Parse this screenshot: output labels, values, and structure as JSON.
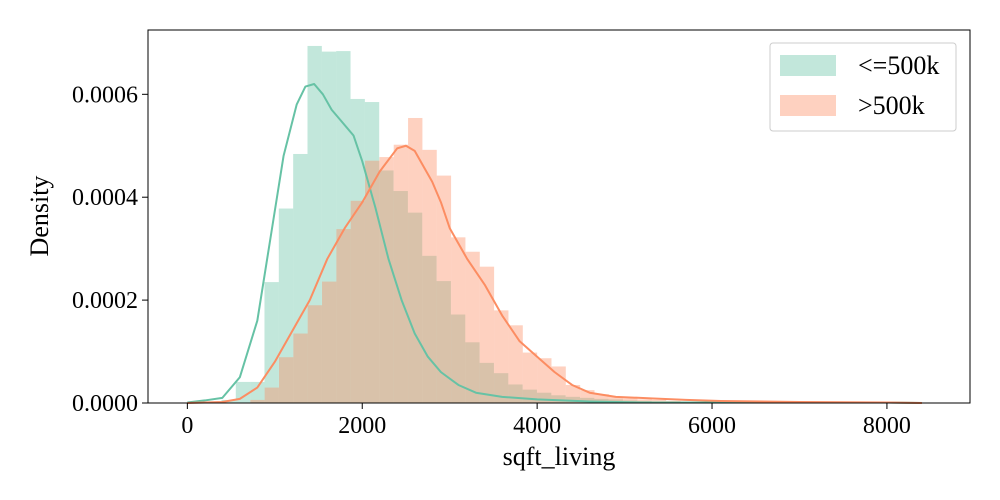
{
  "chart_data": {
    "type": "histogram",
    "title": "",
    "xlabel": "sqft_living",
    "ylabel": "Density",
    "xlim": [
      -450,
      8950
    ],
    "ylim": [
      0,
      0.000725
    ],
    "xticks": [
      0,
      2000,
      4000,
      6000,
      8000
    ],
    "xtick_labels": [
      "0",
      "2000",
      "4000",
      "6000",
      "8000"
    ],
    "yticks": [
      0,
      0.0002,
      0.0004,
      0.0006
    ],
    "ytick_labels": [
      "0.0000",
      "0.0002",
      "0.0004",
      "0.0006"
    ],
    "bin_width": 164,
    "grid": false,
    "legend_position": "top-right",
    "series": [
      {
        "name": "<=500k",
        "color": "#66c2a5",
        "bins_start": 390,
        "densities": [
          6e-06,
          4.1e-05,
          4.1e-05,
          0.000235,
          0.000378,
          0.000484,
          0.000694,
          0.000683,
          0.000684,
          0.000591,
          0.000585,
          0.000452,
          0.000412,
          0.00037,
          0.000286,
          0.000237,
          0.000172,
          0.000118,
          7.8e-05,
          5.8e-05,
          3.6e-05,
          2.6e-05,
          2e-05,
          1.5e-05,
          1.2e-05,
          1e-05,
          8e-06,
          7e-06,
          5e-06,
          4e-06
        ],
        "kde": [
          [
            0,
            1e-06
          ],
          [
            200,
            5e-06
          ],
          [
            400,
            1e-05
          ],
          [
            600,
            5e-05
          ],
          [
            800,
            0.00016
          ],
          [
            950,
            0.00032
          ],
          [
            1100,
            0.00048
          ],
          [
            1250,
            0.00058
          ],
          [
            1350,
            0.000615
          ],
          [
            1450,
            0.00062
          ],
          [
            1550,
            0.0006
          ],
          [
            1650,
            0.00057
          ],
          [
            1750,
            0.00055
          ],
          [
            1900,
            0.00052
          ],
          [
            2000,
            0.00047
          ],
          [
            2150,
            0.00038
          ],
          [
            2300,
            0.00028
          ],
          [
            2450,
            0.0002
          ],
          [
            2600,
            0.000135
          ],
          [
            2750,
            9e-05
          ],
          [
            2900,
            6e-05
          ],
          [
            3100,
            3.5e-05
          ],
          [
            3300,
            2e-05
          ],
          [
            3600,
            1.2e-05
          ],
          [
            4000,
            7e-06
          ],
          [
            4600,
            3e-06
          ],
          [
            5200,
            1e-06
          ],
          [
            6000,
            1e-06
          ],
          [
            7000,
            1e-06
          ],
          [
            8000,
            1e-06
          ],
          [
            8400,
            0
          ]
        ]
      },
      {
        "name": ">500k",
        "color": "#fc8d62",
        "bins_start": 720,
        "densities": [
          6e-06,
          3e-05,
          8.9e-05,
          0.000135,
          0.00019,
          0.000236,
          0.000338,
          0.000393,
          0.000471,
          0.000478,
          0.000502,
          0.000554,
          0.000492,
          0.000442,
          0.000322,
          0.000294,
          0.000265,
          0.00018,
          0.000151,
          9.8e-05,
          8.7e-05,
          7.1e-05,
          3.5e-05,
          2.5e-05,
          1.7e-05,
          1.2e-05,
          9e-06,
          7e-06,
          6e-06,
          4e-06,
          3e-06,
          3e-06,
          2e-06,
          2e-06,
          1e-06
        ],
        "kde": [
          [
            0,
            0
          ],
          [
            400,
            2e-06
          ],
          [
            600,
            8e-06
          ],
          [
            800,
            3e-05
          ],
          [
            1000,
            8e-05
          ],
          [
            1200,
            0.00014
          ],
          [
            1400,
            0.0002
          ],
          [
            1600,
            0.00028
          ],
          [
            1800,
            0.00034
          ],
          [
            2000,
            0.00039
          ],
          [
            2200,
            0.00045
          ],
          [
            2400,
            0.000495
          ],
          [
            2500,
            0.0005
          ],
          [
            2600,
            0.00049
          ],
          [
            2700,
            0.00046
          ],
          [
            2800,
            0.00043
          ],
          [
            2900,
            0.00039
          ],
          [
            3000,
            0.00034
          ],
          [
            3200,
            0.00028
          ],
          [
            3400,
            0.00023
          ],
          [
            3600,
            0.00017
          ],
          [
            3800,
            0.00012
          ],
          [
            4000,
            9e-05
          ],
          [
            4200,
            6e-05
          ],
          [
            4400,
            3.5e-05
          ],
          [
            4600,
            2e-05
          ],
          [
            4900,
            1.2e-05
          ],
          [
            5300,
            9e-06
          ],
          [
            5700,
            6e-06
          ],
          [
            6100,
            4e-06
          ],
          [
            7000,
            2e-06
          ],
          [
            8000,
            1e-06
          ],
          [
            8400,
            0
          ]
        ]
      }
    ]
  }
}
